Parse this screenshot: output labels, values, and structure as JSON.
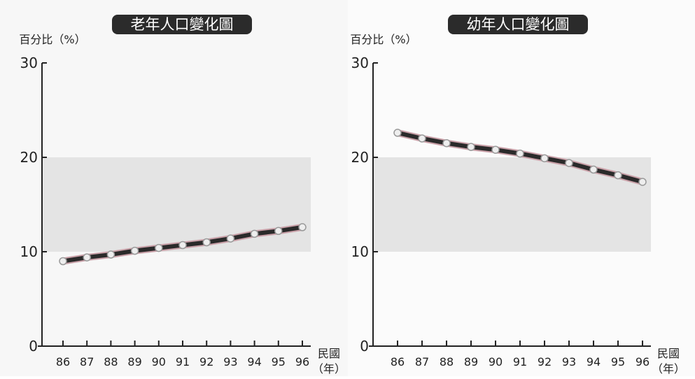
{
  "chart_data": [
    {
      "type": "line",
      "title": "老年人口變化圖",
      "y_label": "百分比（%）",
      "x_label": "民國",
      "x_unit": "（年）",
      "categories": [
        "86",
        "87",
        "88",
        "89",
        "90",
        "91",
        "92",
        "93",
        "94",
        "95",
        "96"
      ],
      "series": [
        {
          "name": "老年人口",
          "color": "#2a2a2a",
          "values": [
            9.0,
            9.4,
            9.7,
            10.1,
            10.4,
            10.7,
            11.0,
            11.4,
            11.9,
            12.2,
            12.6
          ]
        }
      ],
      "ylim": [
        0,
        30
      ],
      "yticks": [
        0,
        10,
        20,
        30
      ],
      "shaded_band": [
        10,
        20
      ]
    },
    {
      "type": "line",
      "title": "幼年人口變化圖",
      "y_label": "百分比（%）",
      "x_label": "民國",
      "x_unit": "（年）",
      "categories": [
        "86",
        "87",
        "88",
        "89",
        "90",
        "91",
        "92",
        "93",
        "94",
        "95",
        "96"
      ],
      "series": [
        {
          "name": "幼年人口",
          "color": "#2a2a2a",
          "values": [
            22.6,
            22.0,
            21.5,
            21.1,
            20.8,
            20.4,
            19.9,
            19.4,
            18.7,
            18.1,
            17.4
          ]
        }
      ],
      "ylim": [
        0,
        30
      ],
      "yticks": [
        0,
        10,
        20,
        30
      ],
      "shaded_band": [
        10,
        20
      ]
    }
  ]
}
